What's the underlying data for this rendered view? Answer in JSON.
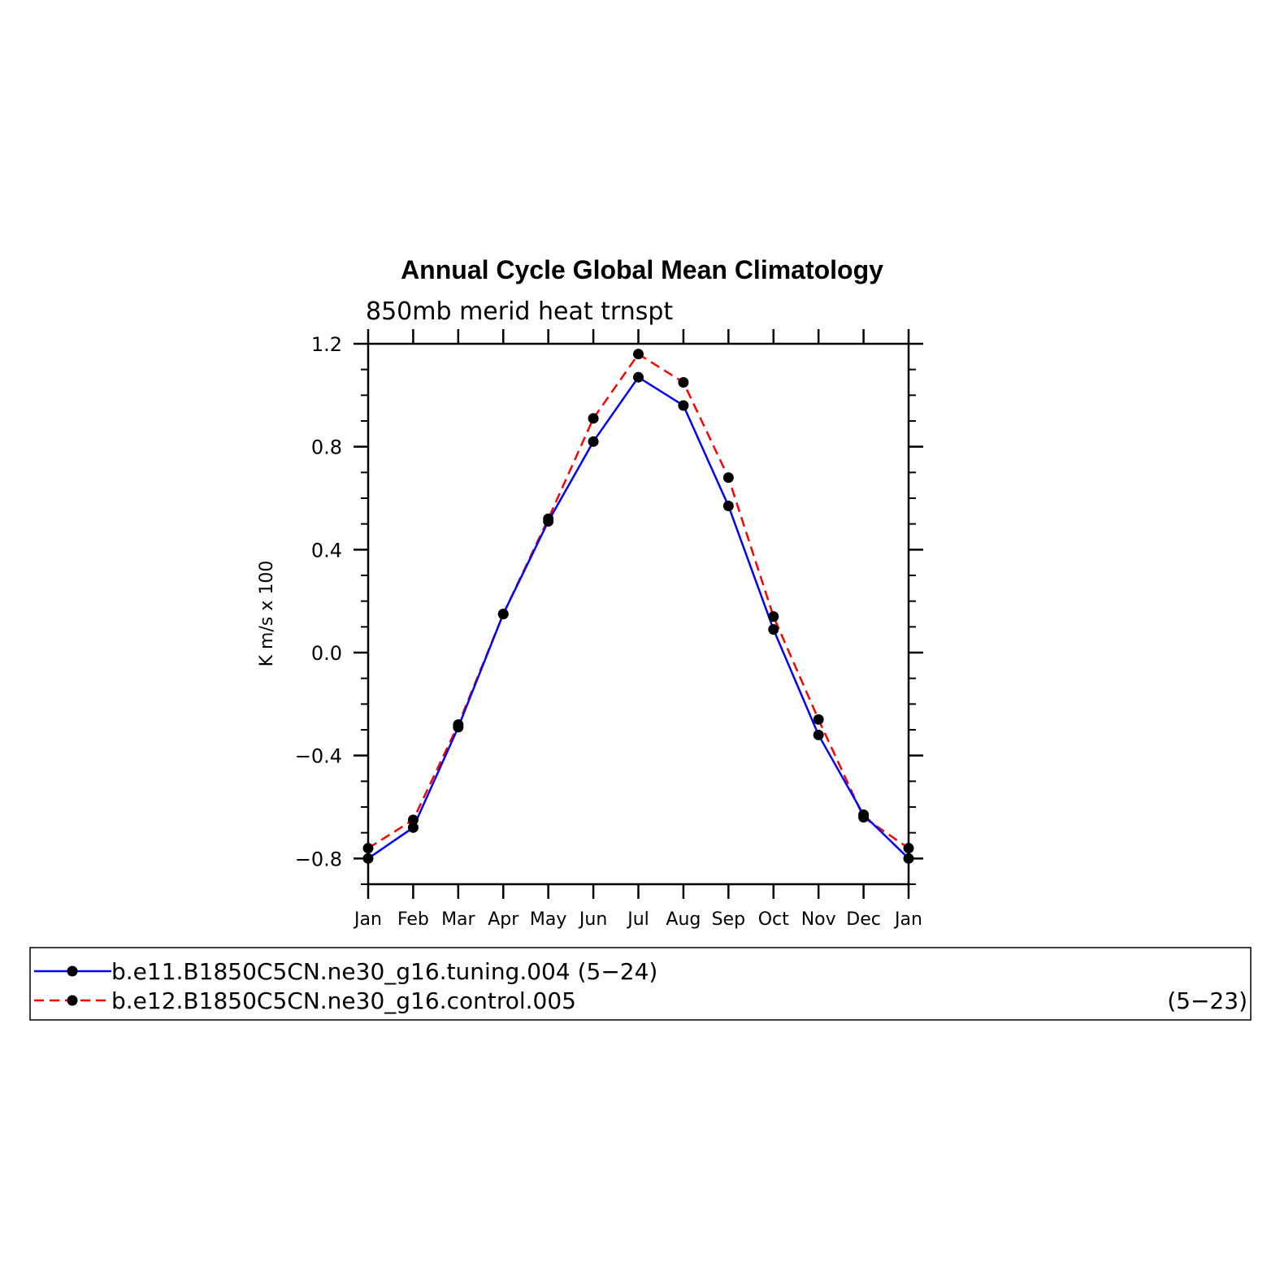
{
  "chart_data": {
    "type": "line",
    "title": "Annual Cycle Global Mean Climatology",
    "subtitle": "850mb merid heat trnspt",
    "ylabel": "K m/s x 100",
    "xlabel": "",
    "categories": [
      "Jan",
      "Feb",
      "Mar",
      "Apr",
      "May",
      "Jun",
      "Jul",
      "Aug",
      "Sep",
      "Oct",
      "Nov",
      "Dec",
      "Jan"
    ],
    "ylim": [
      -0.9,
      1.2
    ],
    "yticks": [
      1.2,
      0.8,
      0.4,
      0.0,
      -0.4,
      -0.8
    ],
    "ytick_labels": [
      "1.2",
      "0.8",
      "0.4",
      "0.0",
      "−0.4",
      "−0.8"
    ],
    "grid": false,
    "legend_position": "bottom",
    "series": [
      {
        "name": "b.e11.B1850C5CN.ne30_g16.tuning.004",
        "years": "(5−24)",
        "color": "#0000ff",
        "style": "solid",
        "values": [
          -0.8,
          -0.68,
          -0.29,
          0.15,
          0.51,
          0.82,
          1.07,
          0.96,
          0.57,
          0.09,
          -0.32,
          -0.63,
          -0.8
        ]
      },
      {
        "name": "b.e12.B1850C5CN.ne30_g16.control.005",
        "years": "(5−23)",
        "color": "#ff0000",
        "style": "dashed",
        "values": [
          -0.76,
          -0.65,
          -0.28,
          0.15,
          0.52,
          0.91,
          1.16,
          1.05,
          0.68,
          0.14,
          -0.26,
          -0.64,
          -0.76
        ]
      }
    ]
  }
}
